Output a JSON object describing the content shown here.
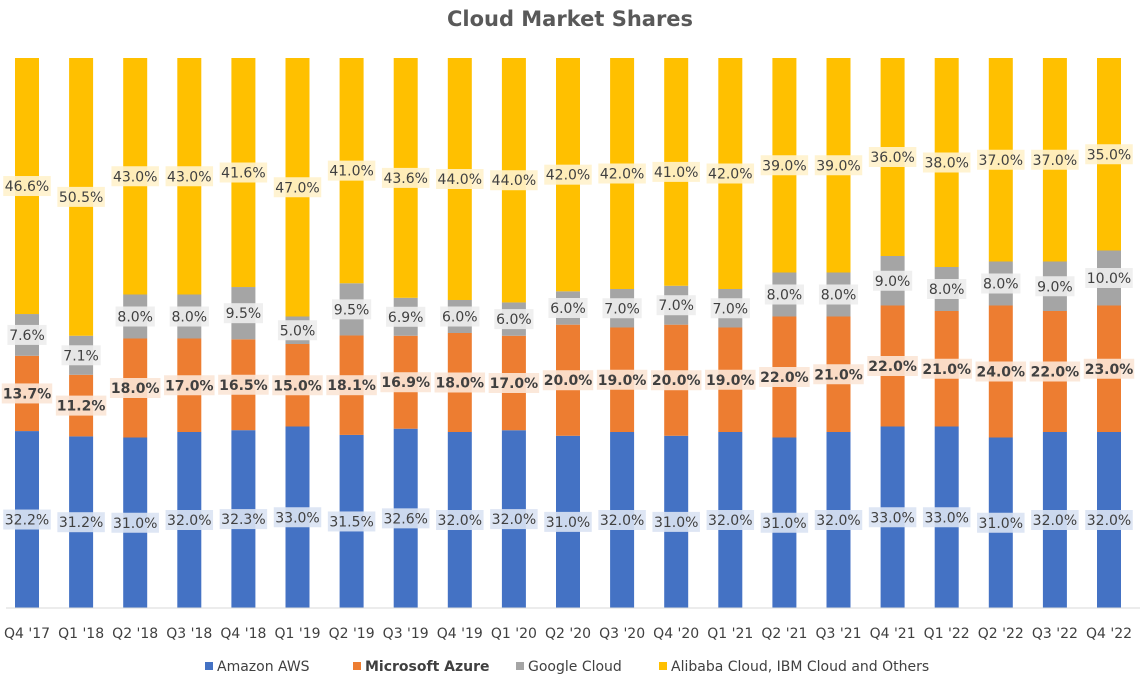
{
  "chart_data": {
    "type": "bar",
    "stacked": true,
    "percent_stacked": true,
    "title": "Cloud Market Shares",
    "categories": [
      "Q4 '17",
      "Q1 '18",
      "Q2 '18",
      "Q3 '18",
      "Q4 '18",
      "Q1 '19",
      "Q2 '19",
      "Q3 '19",
      "Q4 '19",
      "Q1 '20",
      "Q2 '20",
      "Q3 '20",
      "Q4 '20",
      "Q1 '21",
      "Q2 '21",
      "Q3 '21",
      "Q4 '21",
      "Q1 '22",
      "Q2 '22",
      "Q3 '22",
      "Q4 '22"
    ],
    "series": [
      {
        "name": "Amazon AWS",
        "color": "#4472C4",
        "values": [
          32.2,
          31.2,
          31.0,
          32.0,
          32.3,
          33.0,
          31.5,
          32.6,
          32.0,
          32.0,
          31.0,
          32.0,
          31.0,
          32.0,
          31.0,
          32.0,
          33.0,
          33.0,
          31.0,
          32.0,
          32.0
        ],
        "labels": [
          "32.2%",
          "31.2%",
          "31.0%",
          "32.0%",
          "32.3%",
          "33.0%",
          "31.5%",
          "32.6%",
          "32.0%",
          "32.0%",
          "31.0%",
          "32.0%",
          "31.0%",
          "32.0%",
          "31.0%",
          "32.0%",
          "33.0%",
          "33.0%",
          "31.0%",
          "32.0%",
          "32.0%"
        ]
      },
      {
        "name": "Microsoft Azure",
        "color": "#ED7D31",
        "bold": true,
        "values": [
          13.7,
          11.2,
          18.0,
          17.0,
          16.5,
          15.0,
          18.1,
          16.9,
          18.0,
          17.0,
          20.0,
          19.0,
          20.0,
          19.0,
          22.0,
          21.0,
          22.0,
          21.0,
          24.0,
          22.0,
          23.0
        ],
        "labels": [
          "13.7%",
          "11.2%",
          "18.0%",
          "17.0%",
          "16.5%",
          "15.0%",
          "18.1%",
          "16.9%",
          "18.0%",
          "17.0%",
          "20.0%",
          "19.0%",
          "20.0%",
          "19.0%",
          "22.0%",
          "21.0%",
          "22.0%",
          "21.0%",
          "24.0%",
          "22.0%",
          "23.0%"
        ]
      },
      {
        "name": "Google Cloud",
        "color": "#A5A5A5",
        "values": [
          7.6,
          7.1,
          8.0,
          8.0,
          9.5,
          5.0,
          9.5,
          6.9,
          6.0,
          6.0,
          6.0,
          7.0,
          7.0,
          7.0,
          8.0,
          8.0,
          9.0,
          8.0,
          8.0,
          9.0,
          10.0
        ],
        "labels": [
          "7.6%",
          "7.1%",
          "8.0%",
          "8.0%",
          "9.5%",
          "5.0%",
          "9.5%",
          "6.9%",
          "6.0%",
          "6.0%",
          "6.0%",
          "7.0%",
          "7.0%",
          "7.0%",
          "8.0%",
          "8.0%",
          "9.0%",
          "8.0%",
          "8.0%",
          "9.0%",
          "10.0%"
        ]
      },
      {
        "name": "Alibaba Cloud, IBM Cloud and Others",
        "color": "#FFC000",
        "values": [
          46.6,
          50.5,
          43.0,
          43.0,
          41.6,
          47.0,
          41.0,
          43.6,
          44.0,
          44.0,
          42.0,
          42.0,
          41.0,
          42.0,
          39.0,
          39.0,
          36.0,
          38.0,
          37.0,
          37.0,
          35.0
        ],
        "labels": [
          "46.6%",
          "50.5%",
          "43.0%",
          "43.0%",
          "41.6%",
          "47.0%",
          "41.0%",
          "43.6%",
          "44.0%",
          "44.0%",
          "42.0%",
          "42.0%",
          "41.0%",
          "42.0%",
          "39.0%",
          "39.0%",
          "36.0%",
          "38.0%",
          "37.0%",
          "37.0%",
          "35.0%"
        ]
      }
    ],
    "label_backgrounds": [
      "#DAE3F3",
      "#FBE5D6",
      "#EDEDED",
      "#FFF2CC"
    ],
    "ylim": [
      0,
      100
    ],
    "grid": false,
    "legend": "bottom",
    "xlabel": "",
    "ylabel": ""
  }
}
